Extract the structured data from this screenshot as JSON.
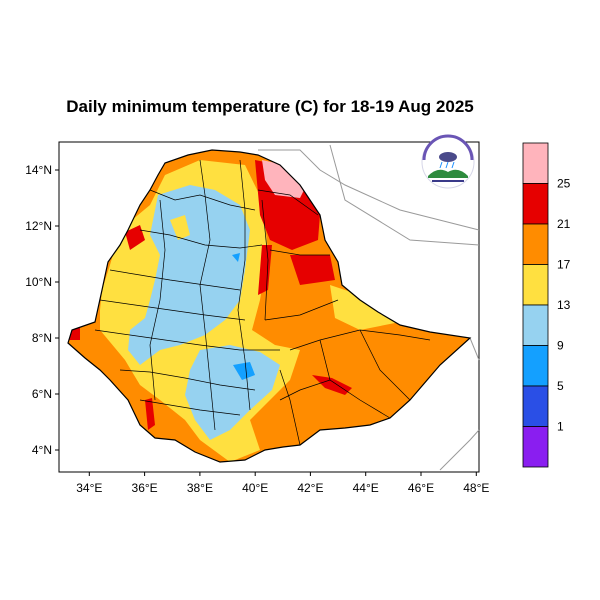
{
  "title": "Daily minimum temperature (C) for 18-19 Aug 2025",
  "axes": {
    "x_ticks": [
      "34°E",
      "36°E",
      "38°E",
      "40°E",
      "42°E",
      "44°E",
      "46°E",
      "48°E"
    ],
    "y_ticks": [
      "14°N",
      "12°N",
      "10°N",
      "8°N",
      "6°N",
      "4°N"
    ],
    "x_range": [
      33.0,
      48.2
    ],
    "y_range": [
      3.2,
      15.0
    ]
  },
  "colorbar": {
    "labels": [
      "1",
      "5",
      "9",
      "13",
      "17",
      "21",
      "25"
    ],
    "colors": [
      "#8a1ef0",
      "#2a4fe6",
      "#14a0ff",
      "#96d2f0",
      "#ffe040",
      "#ff8c00",
      "#e60000",
      "#ffb4bc"
    ]
  },
  "logo": {
    "name": "ethiopian-meteorology-institute-logo"
  },
  "chart_data": {
    "type": "heatmap",
    "title": "Daily minimum temperature (C) for 18-19 Aug 2025",
    "x_ticks": [
      "34°E",
      "36°E",
      "38°E",
      "40°E",
      "42°E",
      "44°E",
      "46°E",
      "48°E"
    ],
    "y_ticks": [
      "14°N",
      "12°N",
      "10°N",
      "8°N",
      "6°N",
      "4°N"
    ],
    "xlim": [
      33.0,
      48.2
    ],
    "ylim": [
      3.2,
      15.0
    ],
    "color_levels": [
      1,
      5,
      9,
      13,
      17,
      21,
      25
    ],
    "legend_position": "right"
  }
}
